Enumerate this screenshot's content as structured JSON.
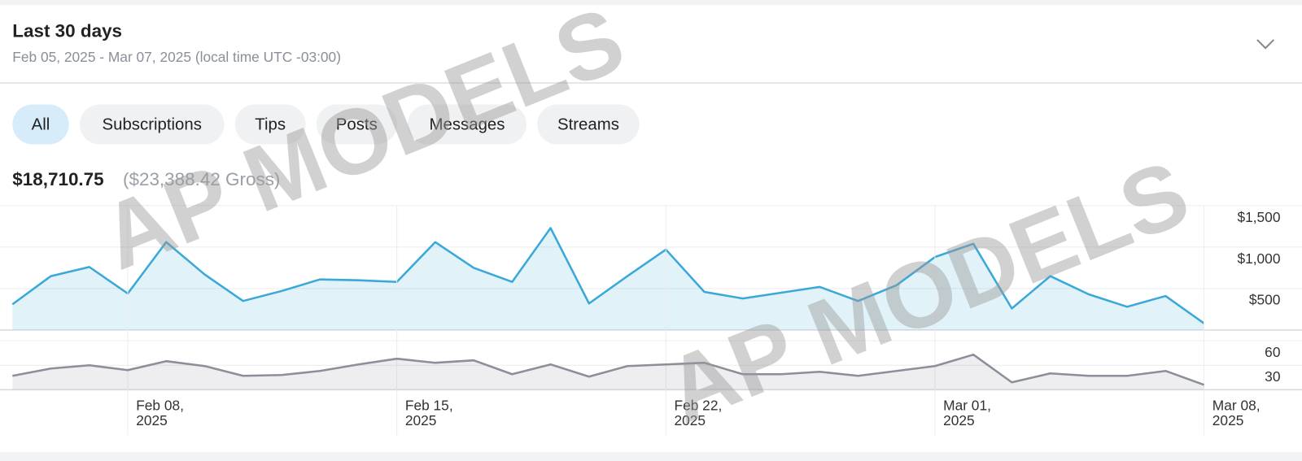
{
  "header": {
    "title": "Last 30 days",
    "subtitle": "Feb 05, 2025 - Mar 07, 2025 (local time UTC -03:00)"
  },
  "tabs": [
    "All",
    "Subscriptions",
    "Tips",
    "Posts",
    "Messages",
    "Streams"
  ],
  "selected_tab": 0,
  "totals": {
    "net": "$18,710.75",
    "gross": "($23,388.42 Gross)"
  },
  "watermark": "AP MODELS",
  "chart_data": [
    {
      "type": "area",
      "x": [
        "2025-02-05",
        "2025-02-06",
        "2025-02-07",
        "2025-02-08",
        "2025-02-09",
        "2025-02-10",
        "2025-02-11",
        "2025-02-12",
        "2025-02-13",
        "2025-02-14",
        "2025-02-15",
        "2025-02-16",
        "2025-02-17",
        "2025-02-18",
        "2025-02-19",
        "2025-02-20",
        "2025-02-21",
        "2025-02-22",
        "2025-02-23",
        "2025-02-24",
        "2025-02-25",
        "2025-02-26",
        "2025-02-27",
        "2025-02-28",
        "2025-03-01",
        "2025-03-02",
        "2025-03-03",
        "2025-03-04",
        "2025-03-05",
        "2025-03-06",
        "2025-03-07",
        "2025-03-08"
      ],
      "values": [
        310,
        650,
        760,
        440,
        1060,
        670,
        350,
        470,
        610,
        600,
        580,
        1060,
        750,
        580,
        1230,
        320,
        650,
        970,
        460,
        380,
        450,
        520,
        350,
        540,
        880,
        1040,
        260,
        650,
        430,
        280,
        410,
        80
      ],
      "color": "#3aa8d8",
      "xlim": [
        "2025-02-05",
        "2025-03-08"
      ],
      "ylim": [
        0,
        1500
      ],
      "yticks": [
        {
          "value": 500,
          "label": "$500"
        },
        {
          "value": 1000,
          "label": "$1,000"
        },
        {
          "value": 1500,
          "label": "$1,500"
        }
      ],
      "grid": true
    },
    {
      "type": "area",
      "x": [
        "2025-02-05",
        "2025-02-06",
        "2025-02-07",
        "2025-02-08",
        "2025-02-09",
        "2025-02-10",
        "2025-02-11",
        "2025-02-12",
        "2025-02-13",
        "2025-02-14",
        "2025-02-15",
        "2025-02-16",
        "2025-02-17",
        "2025-02-18",
        "2025-02-19",
        "2025-02-20",
        "2025-02-21",
        "2025-02-22",
        "2025-02-23",
        "2025-02-24",
        "2025-02-25",
        "2025-02-26",
        "2025-02-27",
        "2025-02-28",
        "2025-03-01",
        "2025-03-02",
        "2025-03-03",
        "2025-03-04",
        "2025-03-05",
        "2025-03-06",
        "2025-03-07",
        "2025-03-08"
      ],
      "values": [
        17,
        26,
        30,
        24,
        35,
        29,
        17,
        18,
        23,
        31,
        38,
        33,
        36,
        19,
        31,
        16,
        29,
        31,
        33,
        19,
        19,
        22,
        17,
        23,
        29,
        43,
        9,
        20,
        17,
        17,
        23,
        6
      ],
      "color": "#8a8f99",
      "xlim": [
        "2025-02-05",
        "2025-03-08"
      ],
      "ylim": [
        0,
        60
      ],
      "yticks": [
        30,
        60
      ],
      "xticks": [
        {
          "value": "2025-02-08",
          "label": "Feb 08, 2025"
        },
        {
          "value": "2025-02-15",
          "label": "Feb 15, 2025"
        },
        {
          "value": "2025-02-22",
          "label": "Feb 22, 2025"
        },
        {
          "value": "2025-03-01",
          "label": "Mar 01, 2025"
        },
        {
          "value": "2025-03-08",
          "label": "Mar 08, 2025"
        }
      ],
      "grid": true
    }
  ]
}
